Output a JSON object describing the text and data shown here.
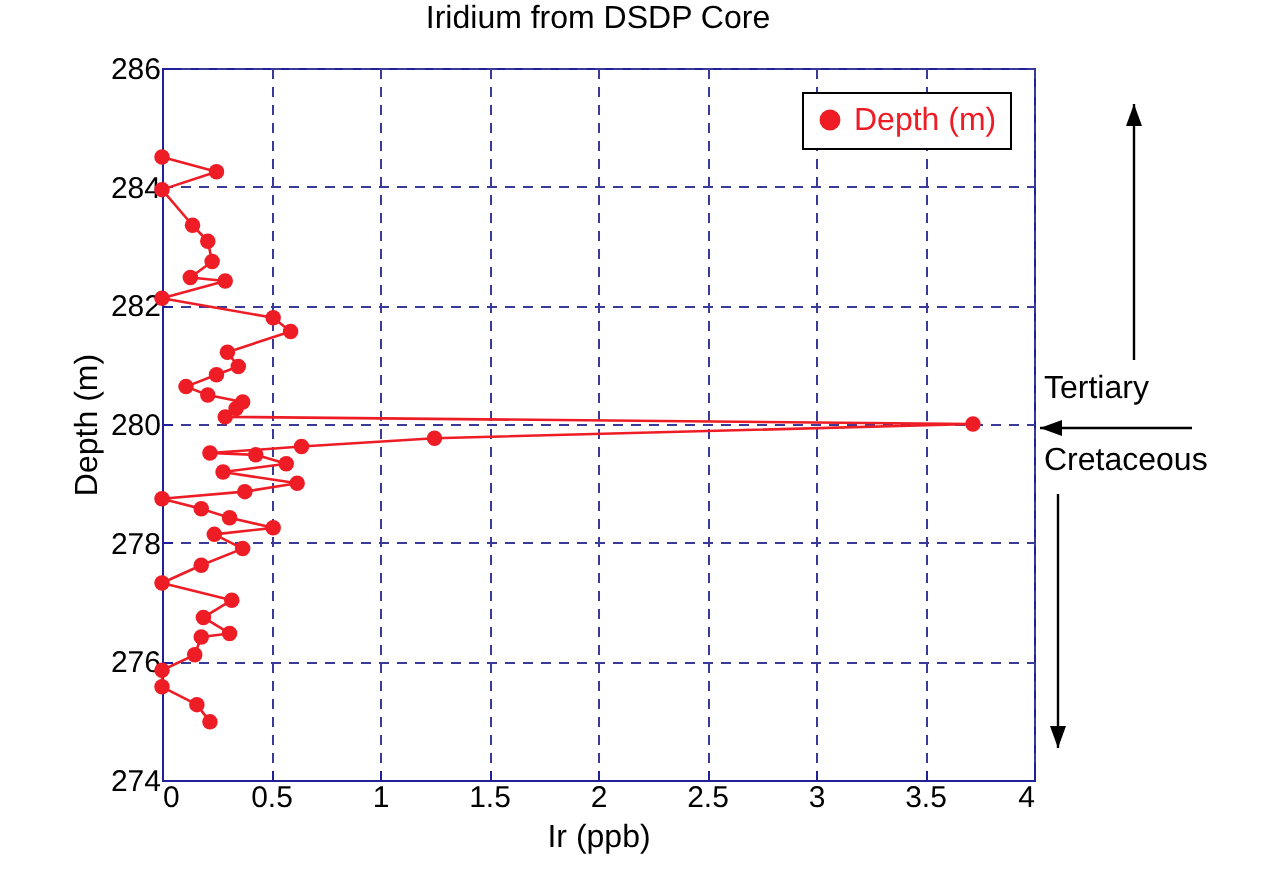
{
  "chart_data": {
    "type": "line",
    "title": "Iridium from DSDP Core",
    "xlabel": "Ir (ppb)",
    "ylabel": "Depth (m)",
    "series": [
      {
        "name": "Depth (m)",
        "color": "#ee1c25",
        "x": [
          0,
          0.25,
          0,
          0.14,
          0.21,
          0.23,
          0.13,
          0.29,
          0,
          0.51,
          0.59,
          0.3,
          0.35,
          0.25,
          0.11,
          0.21,
          0.37,
          0.34,
          0.29,
          3.72,
          1.25,
          0.64,
          0.22,
          0.43,
          0.57,
          0.28,
          0.62,
          0.38,
          0,
          0.18,
          0.31,
          0.51,
          0.24,
          0.37,
          0.18,
          0,
          0.32,
          0.19,
          0.31,
          0.18,
          0.15,
          0,
          0,
          0.16,
          0.22
        ],
        "values": [
          284.5,
          284.25,
          283.95,
          283.35,
          283.08,
          282.74,
          282.47,
          282.41,
          282.12,
          281.79,
          281.56,
          281.21,
          280.97,
          280.83,
          280.63,
          280.49,
          280.37,
          280.26,
          280.12,
          280,
          279.76,
          279.62,
          279.51,
          279.48,
          279.33,
          279.19,
          279,
          278.86,
          278.74,
          278.57,
          278.42,
          278.25,
          278.14,
          277.9,
          277.62,
          277.32,
          277.03,
          276.74,
          276.47,
          276.41,
          276.11,
          275.85,
          275.57,
          275.27,
          274.98
        ]
      }
    ],
    "xlim": [
      0,
      4
    ],
    "xticks": [
      0,
      0.5,
      1,
      1.5,
      2,
      2.5,
      3,
      3.5,
      4
    ],
    "ylim": [
      274,
      286
    ],
    "yticks": [
      274,
      276,
      278,
      280,
      282,
      284,
      286
    ],
    "grid": true,
    "legend": "top right",
    "marker": "circle",
    "line_style": "solid",
    "annotations": [
      "Tertiary",
      "Cretaceous"
    ]
  }
}
